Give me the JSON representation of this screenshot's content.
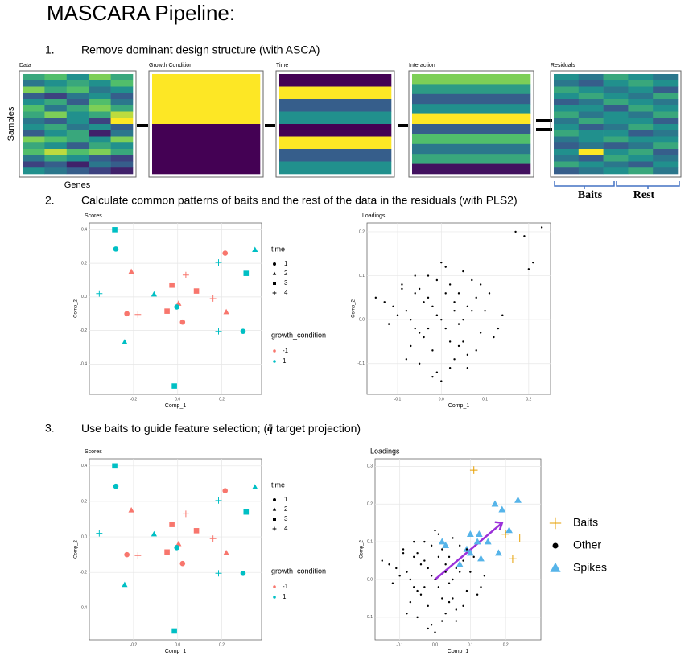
{
  "title": "MASCARA Pipeline:",
  "steps": [
    {
      "number": "1.",
      "text": "Remove dominant design structure (with ASCA)"
    },
    {
      "number": "2.",
      "text": "Calculate common patterns of baits and the rest of the data in the residuals (with PLS2)"
    },
    {
      "number": "3.",
      "text": "Use baits to guide feature selection;  (",
      "symbol": "q̄",
      "text_after": " target projection)"
    }
  ],
  "axis_labels": {
    "samples": "Samples",
    "genes": "Genes"
  },
  "residual_groups": [
    "Baits",
    "Rest"
  ],
  "heatmaps": [
    {
      "label": "Data",
      "values": [
        [
          0.6,
          0.7,
          0.5,
          0.8,
          0.6
        ],
        [
          0.4,
          0.5,
          0.6,
          0.5,
          0.7
        ],
        [
          0.8,
          0.6,
          0.7,
          0.4,
          0.5
        ],
        [
          0.3,
          0.2,
          0.4,
          0.5,
          0.3
        ],
        [
          0.5,
          0.6,
          0.3,
          0.7,
          0.4
        ],
        [
          0.7,
          0.4,
          0.6,
          0.8,
          0.6
        ],
        [
          0.6,
          0.8,
          0.5,
          0.6,
          0.9
        ],
        [
          0.4,
          0.3,
          0.5,
          0.2,
          1
        ],
        [
          0.5,
          0.6,
          0.4,
          0.5,
          0.3
        ],
        [
          0.3,
          0.5,
          0.6,
          0.1,
          0.4
        ],
        [
          0.8,
          0.7,
          0.6,
          0.5,
          0.8
        ],
        [
          0.6,
          0.5,
          0.3,
          0.6,
          0.5
        ],
        [
          0.7,
          0.9,
          0.7,
          0.8,
          0.6
        ],
        [
          0.4,
          0.6,
          0.5,
          0.3,
          0.2
        ],
        [
          0.2,
          0.3,
          0.1,
          0.4,
          0.3
        ],
        [
          0.5,
          0.4,
          0.3,
          0.2,
          0.1
        ]
      ]
    },
    {
      "label": "Growth Condition",
      "values": [
        [
          1
        ],
        [
          0
        ]
      ]
    },
    {
      "label": "Time",
      "values": [
        [
          0
        ],
        [
          1
        ],
        [
          0.3
        ],
        [
          0.5
        ],
        [
          0
        ],
        [
          1
        ],
        [
          0.3
        ],
        [
          0.5
        ]
      ]
    },
    {
      "label": "Interaction",
      "values": [
        [
          0.8
        ],
        [
          0.55
        ],
        [
          0.3
        ],
        [
          0.5
        ],
        [
          1
        ],
        [
          0.3
        ],
        [
          0.7
        ],
        [
          0.4
        ],
        [
          0.6
        ],
        [
          0.05
        ]
      ]
    },
    {
      "label": "Residuals",
      "values": [
        [
          0.5,
          0.4,
          0.6,
          0.5,
          0.4
        ],
        [
          0.4,
          0.3,
          0.5,
          0.6,
          0.5
        ],
        [
          0.6,
          0.5,
          0.4,
          0.5,
          0.3
        ],
        [
          0.5,
          0.6,
          0.5,
          0.4,
          0.6
        ],
        [
          0.3,
          0.4,
          0.6,
          0.5,
          0.4
        ],
        [
          0.5,
          0.5,
          0.3,
          0.6,
          0.5
        ],
        [
          0.6,
          0.4,
          0.5,
          0.4,
          0.6
        ],
        [
          0.4,
          0.6,
          0.5,
          0.5,
          0.3
        ],
        [
          0.5,
          0.3,
          0.4,
          0.6,
          0.5
        ],
        [
          0.6,
          0.5,
          0.5,
          0.3,
          0.4
        ],
        [
          0.4,
          0.5,
          0.6,
          0.5,
          0.5
        ],
        [
          0.3,
          0.4,
          0.3,
          0.4,
          0.6
        ],
        [
          0.5,
          1,
          0.5,
          0.6,
          0.3
        ],
        [
          0.4,
          0.3,
          0.6,
          0.5,
          0.4
        ],
        [
          0.6,
          0.5,
          0.4,
          0.3,
          0.5
        ],
        [
          0.3,
          0.4,
          0.5,
          0.6,
          0.4
        ]
      ]
    }
  ],
  "chart_data": [
    {
      "type": "scatter",
      "title": "Scores",
      "xlabel": "Comp_1",
      "ylabel": "Comp_2",
      "xlim": [
        -0.4,
        0.38
      ],
      "ylim": [
        -0.58,
        0.44
      ],
      "xticks": [
        -0.2,
        {
          "value": 0,
          "label": "0.0"
        },
        0.2
      ],
      "yticks": [
        -0.4,
        -0.2,
        {
          "value": 0,
          "label": "0.0"
        },
        0.2,
        0.4
      ],
      "grid": true,
      "x": [
        -0.285,
        -0.28,
        0.215,
        0.35,
        0.185,
        -0.21,
        0.037,
        0.31,
        -0.026,
        0.085,
        -0.355,
        -0.107,
        0.16,
        0.004,
        -0.004,
        -0.048,
        -0.23,
        -0.18,
        0.22,
        0.022,
        0.185,
        0.296,
        -0.24,
        -0.015
      ],
      "y": [
        0.4,
        0.285,
        0.26,
        0.28,
        0.205,
        0.15,
        0.13,
        0.14,
        0.07,
        0.035,
        0.02,
        0.015,
        -0.01,
        -0.04,
        -0.06,
        -0.085,
        -0.1,
        -0.105,
        -0.09,
        -0.15,
        -0.205,
        -0.205,
        -0.27,
        -0.53
      ],
      "time": [
        "3",
        "1",
        "1",
        "2",
        "4",
        "2",
        "4",
        "3",
        "3",
        "3",
        "4",
        "2",
        "4",
        "2",
        "1",
        "3",
        "1",
        "4",
        "2",
        "1",
        "4",
        "1",
        "2",
        "3"
      ],
      "growth_condition": [
        "1",
        "1",
        "-1",
        "1",
        "1",
        "-1",
        "-1",
        "1",
        "-1",
        "-1",
        "1",
        "1",
        "-1",
        "-1",
        "1",
        "-1",
        "-1",
        "-1",
        "-1",
        "-1",
        "1",
        "1",
        "1",
        "1"
      ],
      "legends": [
        {
          "title": "time",
          "entries": [
            "1",
            "2",
            "3",
            "4"
          ],
          "shapes": [
            "circle",
            "triangle",
            "square",
            "plus"
          ]
        },
        {
          "title": "growth_condition",
          "entries": [
            "-1",
            "1"
          ],
          "colors": [
            "#f8766d",
            "#00bfc4"
          ]
        }
      ]
    },
    {
      "type": "scatter",
      "title": "Loadings",
      "xlabel": "Comp_1",
      "ylabel": "Comp_2",
      "xlim": [
        -0.17,
        0.25
      ],
      "ylim": [
        -0.17,
        0.22
      ],
      "xticks": [
        -0.1,
        {
          "value": 0,
          "label": "0.0"
        },
        0.1,
        0.2
      ],
      "yticks": [
        -0.1,
        {
          "value": 0,
          "label": "0.0"
        },
        0.1,
        0.2
      ],
      "grid": true,
      "series": [
        {
          "color": "#000000",
          "shape": "dot",
          "x": [
            -0.08,
            -0.05,
            -0.03,
            -0.01,
            0.01,
            0.03,
            0.05,
            0.07,
            -0.06,
            -0.02,
            0.02,
            0.04,
            0.06,
            -0.04,
            0,
            0.08,
            -0.1,
            -0.07,
            0.09,
            0.1,
            -0.12,
            0.12,
            -0.09,
            -0.03,
            0.03,
            0.05,
            -0.05,
            0.01,
            -0.01,
            0.02,
            -0.02,
            0.04,
            -0.04,
            0.06,
            -0.06,
            0.07,
            -0.07,
            0,
            0.11,
            -0.11,
            0.13,
            -0.13,
            0.08,
            -0.08,
            0.03,
            -0.03,
            0.05,
            -0.05,
            0.01,
            -0.01,
            -0.15,
            0.14,
            0.0,
            0.02,
            -0.02,
            0.09,
            -0.09,
            0.06,
            -0.06,
            0.04,
            0.17,
            0.19,
            0.23,
            0.21,
            0.2
          ],
          "y": [
            0.02,
            -0.03,
            0.05,
            0.01,
            -0.02,
            0.04,
            -0.05,
            0.02,
            0.06,
            -0.07,
            0.08,
            -0.01,
            0.03,
            -0.04,
            0,
            0.05,
            0.01,
            -0.06,
            -0.03,
            0.02,
            -0.01,
            -0.04,
            0.07,
            0.1,
            -0.09,
            0.11,
            -0.1,
            0.12,
            -0.12,
            -0.05,
            0.03,
            0.06,
            0.04,
            -0.08,
            -0.02,
            0.09,
            0.0,
            -0.14,
            0.06,
            0.03,
            -0.02,
            0.04,
            -0.07,
            -0.09,
            0.02,
            -0.02,
            0.0,
            0.07,
            0.06,
            0.09,
            0.05,
            0.01,
            0.13,
            -0.11,
            -0.13,
            0.08,
            0.08,
            -0.11,
            0.1,
            -0.06,
            0.2,
            0.19,
            0.21,
            0.13,
            0.115
          ]
        }
      ]
    },
    {
      "type": "scatter",
      "title": "Scores",
      "xlabel": "Comp_1",
      "ylabel": "Comp_2",
      "xlim": [
        -0.4,
        0.38
      ],
      "ylim": [
        -0.58,
        0.44
      ],
      "xticks": [
        -0.2,
        {
          "value": 0,
          "label": "0.0"
        },
        0.2
      ],
      "yticks": [
        -0.4,
        -0.2,
        {
          "value": 0,
          "label": "0.0"
        },
        0.2,
        0.4
      ],
      "grid": true,
      "x": [
        -0.285,
        -0.28,
        0.215,
        0.35,
        0.185,
        -0.21,
        0.037,
        0.31,
        -0.026,
        0.085,
        -0.355,
        -0.107,
        0.16,
        0.004,
        -0.004,
        -0.048,
        -0.23,
        -0.18,
        0.22,
        0.022,
        0.185,
        0.296,
        -0.24,
        -0.015
      ],
      "y": [
        0.4,
        0.285,
        0.26,
        0.28,
        0.205,
        0.15,
        0.13,
        0.14,
        0.07,
        0.035,
        0.02,
        0.015,
        -0.01,
        -0.04,
        -0.06,
        -0.085,
        -0.1,
        -0.105,
        -0.09,
        -0.15,
        -0.205,
        -0.205,
        -0.27,
        -0.53
      ],
      "time": [
        "3",
        "1",
        "1",
        "2",
        "4",
        "2",
        "4",
        "3",
        "3",
        "3",
        "4",
        "2",
        "4",
        "2",
        "1",
        "3",
        "1",
        "4",
        "2",
        "1",
        "4",
        "1",
        "2",
        "3"
      ],
      "growth_condition": [
        "1",
        "1",
        "-1",
        "1",
        "1",
        "-1",
        "-1",
        "1",
        "-1",
        "-1",
        "1",
        "1",
        "-1",
        "-1",
        "1",
        "-1",
        "-1",
        "-1",
        "-1",
        "-1",
        "1",
        "1",
        "1",
        "1"
      ],
      "legends": [
        {
          "title": "time",
          "entries": [
            "1",
            "2",
            "3",
            "4"
          ],
          "shapes": [
            "circle",
            "triangle",
            "square",
            "plus"
          ]
        },
        {
          "title": "growth_condition",
          "entries": [
            "-1",
            "1"
          ],
          "colors": [
            "#f8766d",
            "#00bfc4"
          ]
        }
      ]
    },
    {
      "type": "scatter",
      "title": "Loadings",
      "xlabel": "Comp_1",
      "ylabel": "Comp_2",
      "xlim": [
        -0.17,
        0.3
      ],
      "ylim": [
        -0.16,
        0.32
      ],
      "xticks": [
        -0.1,
        {
          "value": 0,
          "label": "0.0"
        },
        0.1,
        0.2
      ],
      "yticks": [
        -0.1,
        {
          "value": 0,
          "label": "0.0"
        },
        0.1,
        0.2,
        0.3
      ],
      "grid": true,
      "series": [
        {
          "name": "Baits",
          "color": "#e69f00",
          "shape": "plus",
          "x": [
            0.11,
            0.24,
            0.22,
            0.2
          ],
          "y": [
            0.29,
            0.11,
            0.055,
            0.12
          ]
        },
        {
          "name": "Other",
          "color": "#000000",
          "shape": "dot",
          "x": [
            -0.08,
            -0.05,
            -0.03,
            -0.01,
            0.01,
            0.03,
            0.05,
            0.07,
            -0.06,
            -0.02,
            0.02,
            0.04,
            0.06,
            -0.04,
            0,
            0.08,
            -0.1,
            -0.07,
            0.09,
            0.1,
            -0.12,
            0.12,
            -0.09,
            -0.03,
            0.03,
            0.05,
            -0.05,
            0.01,
            -0.01,
            0.02,
            -0.02,
            0.04,
            -0.04,
            0.06,
            -0.06,
            0.07,
            -0.07,
            0,
            0.11,
            -0.11,
            0.13,
            -0.13,
            0.08,
            -0.08,
            0.03,
            -0.03,
            0.05,
            -0.05,
            0.01,
            -0.01,
            -0.15,
            0.14,
            0.0,
            0.02,
            -0.02,
            0.09,
            -0.09,
            0.06,
            -0.06,
            0.04
          ],
          "y": [
            0.02,
            -0.03,
            0.05,
            0.01,
            -0.02,
            0.04,
            -0.05,
            0.02,
            0.06,
            -0.07,
            0.08,
            -0.01,
            0.03,
            -0.04,
            0,
            0.05,
            0.01,
            -0.06,
            -0.03,
            0.02,
            -0.01,
            -0.04,
            0.07,
            0.1,
            -0.09,
            0.11,
            -0.1,
            0.12,
            -0.12,
            -0.05,
            0.03,
            0.06,
            0.04,
            -0.08,
            -0.02,
            0.09,
            0.0,
            -0.14,
            0.06,
            0.03,
            -0.02,
            0.04,
            -0.07,
            -0.09,
            0.02,
            -0.02,
            0.0,
            0.07,
            0.06,
            0.09,
            0.05,
            0.01,
            0.13,
            -0.11,
            -0.13,
            0.08,
            0.08,
            -0.11,
            0.1,
            -0.06
          ]
        },
        {
          "name": "Spikes",
          "color": "#56b4e9",
          "shape": "triangle",
          "x": [
            0.17,
            0.19,
            0.235,
            0.21,
            0.1,
            0.125,
            0.12,
            0.15,
            0.09,
            0.02,
            0.03,
            0.1,
            0.18,
            0.07,
            0.13
          ],
          "y": [
            0.2,
            0.185,
            0.21,
            0.13,
            0.12,
            0.12,
            0.1,
            0.1,
            0.08,
            0.1,
            0.09,
            0.07,
            0.07,
            0.04,
            0.055
          ]
        }
      ]
    }
  ]
}
